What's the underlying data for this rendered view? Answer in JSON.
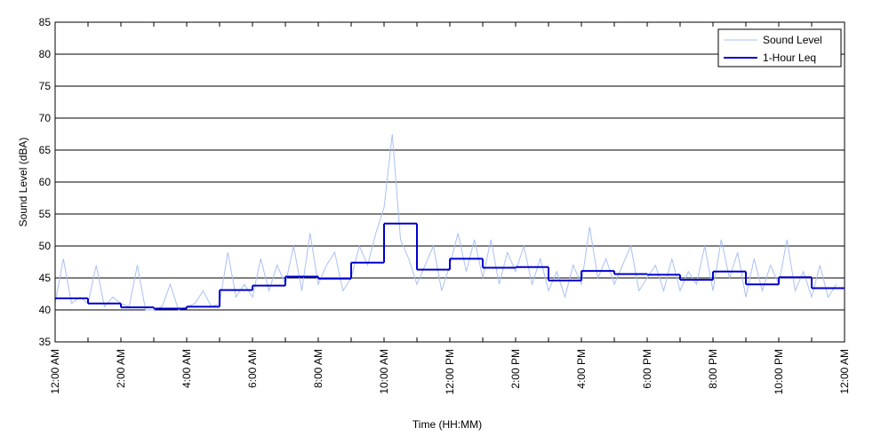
{
  "chart_data": {
    "type": "line",
    "x_label": "Time (HH:MM)",
    "y_label": "Sound Level (dBA)",
    "xlim": [
      0,
      24
    ],
    "ylim": [
      35,
      85
    ],
    "xticks": [
      {
        "value": 0,
        "label": "12:00 AM"
      },
      {
        "value": 2,
        "label": "2:00 AM"
      },
      {
        "value": 4,
        "label": "4:00 AM"
      },
      {
        "value": 6,
        "label": "6:00 AM"
      },
      {
        "value": 8,
        "label": "8:00 AM"
      },
      {
        "value": 10,
        "label": "10:00 AM"
      },
      {
        "value": 12,
        "label": "12:00 PM"
      },
      {
        "value": 14,
        "label": "2:00 PM"
      },
      {
        "value": 16,
        "label": "4:00 PM"
      },
      {
        "value": 18,
        "label": "6:00 PM"
      },
      {
        "value": 20,
        "label": "8:00 PM"
      },
      {
        "value": 22,
        "label": "10:00 PM"
      },
      {
        "value": 24,
        "label": "12:00 AM"
      }
    ],
    "minor_xticks": [
      1,
      3,
      5,
      7,
      9,
      11,
      13,
      15,
      17,
      19,
      21,
      23
    ],
    "yticks": [
      35,
      40,
      45,
      50,
      55,
      60,
      65,
      70,
      75,
      80,
      85
    ],
    "grid": true,
    "legend": "upper right",
    "series": [
      {
        "name": "Sound Level",
        "color": "#a9c1f2",
        "x": [
          0,
          0.25,
          0.5,
          0.75,
          1,
          1.25,
          1.5,
          1.75,
          2,
          2.25,
          2.5,
          2.75,
          3,
          3.25,
          3.5,
          3.75,
          4,
          4.25,
          4.5,
          4.75,
          5,
          5.25,
          5.5,
          5.75,
          6,
          6.25,
          6.5,
          6.75,
          7,
          7.25,
          7.5,
          7.75,
          8,
          8.25,
          8.5,
          8.75,
          9,
          9.25,
          9.5,
          9.75,
          10,
          10.25,
          10.5,
          10.75,
          11,
          11.25,
          11.5,
          11.75,
          12,
          12.25,
          12.5,
          12.75,
          13,
          13.25,
          13.5,
          13.75,
          14,
          14.25,
          14.5,
          14.75,
          15,
          15.25,
          15.5,
          15.75,
          16,
          16.25,
          16.5,
          16.75,
          17,
          17.25,
          17.5,
          17.75,
          18,
          18.25,
          18.5,
          18.75,
          19,
          19.25,
          19.5,
          19.75,
          20,
          20.25,
          20.5,
          20.75,
          21,
          21.25,
          21.5,
          21.75,
          22,
          22.25,
          22.5,
          22.75,
          23,
          23.25,
          23.5,
          23.75
        ],
        "values": [
          41,
          48,
          41,
          42,
          41,
          47,
          40.5,
          42,
          41,
          40.5,
          47,
          40,
          40,
          40.5,
          44,
          40,
          40.5,
          41,
          43,
          40.5,
          41,
          49,
          42,
          44,
          42,
          48,
          43,
          47,
          44,
          50,
          43,
          52,
          44,
          47,
          49,
          43,
          45,
          50,
          47,
          52,
          56,
          67.5,
          51,
          48,
          44,
          47,
          50,
          43,
          47,
          52,
          46,
          51,
          45,
          51,
          44,
          49,
          46,
          50,
          44,
          48,
          43,
          46,
          42,
          47,
          44,
          53,
          45,
          48,
          44,
          47,
          50,
          43,
          45,
          47,
          43,
          48,
          43,
          46,
          44,
          50,
          43,
          51,
          45,
          49,
          42,
          48,
          43,
          47,
          44,
          51,
          43,
          46,
          42,
          47,
          42,
          44
        ]
      },
      {
        "name": "1-Hour Leq",
        "color": "#0000cc",
        "step": true,
        "x": [
          0,
          1,
          2,
          3,
          4,
          5,
          6,
          7,
          8,
          9,
          10,
          11,
          12,
          13,
          14,
          15,
          16,
          17,
          18,
          19,
          20,
          21,
          22,
          23
        ],
        "values": [
          41.8,
          41.0,
          40.4,
          40.2,
          40.5,
          43.1,
          43.8,
          45.2,
          44.9,
          47.4,
          53.5,
          46.3,
          48.0,
          46.6,
          46.7,
          44.6,
          46.1,
          45.6,
          45.5,
          44.7,
          46.0,
          44.0,
          45.1,
          43.4
        ]
      }
    ]
  }
}
